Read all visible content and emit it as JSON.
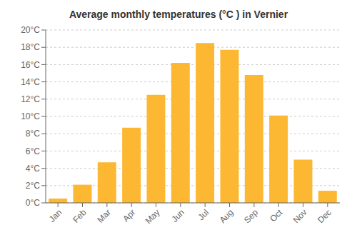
{
  "chart_data": {
    "type": "bar",
    "title": "Average monthly temperatures (°C ) in Vernier",
    "categories": [
      "Jan",
      "Feb",
      "Mar",
      "Apr",
      "May",
      "Jun",
      "Jul",
      "Aug",
      "Sep",
      "Oct",
      "Nov",
      "Dec"
    ],
    "values": [
      0.5,
      2.1,
      4.7,
      8.7,
      12.5,
      16.2,
      18.5,
      17.7,
      14.8,
      10.1,
      5.0,
      1.4
    ],
    "color": "#FDB833",
    "ylim": [
      0,
      20
    ],
    "yticks": [
      {
        "value": 0,
        "label": "0°C"
      },
      {
        "value": 2,
        "label": "2°C"
      },
      {
        "value": 4,
        "label": "4°C"
      },
      {
        "value": 6,
        "label": "6°C"
      },
      {
        "value": 8,
        "label": "8°C"
      },
      {
        "value": 10,
        "label": "10°C"
      },
      {
        "value": 12,
        "label": "12°C"
      },
      {
        "value": 14,
        "label": "14°C"
      },
      {
        "value": 16,
        "label": "16°C"
      },
      {
        "value": 18,
        "label": "18°C"
      },
      {
        "value": 20,
        "label": "20°C"
      }
    ],
    "grid": true
  }
}
